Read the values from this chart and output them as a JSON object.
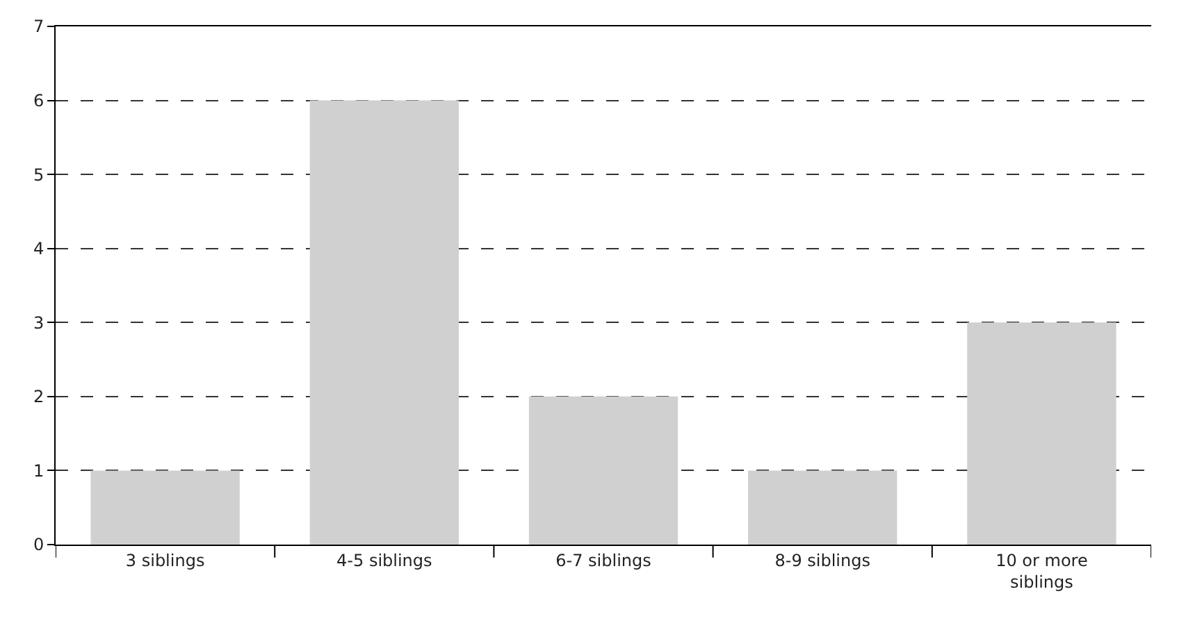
{
  "chart_data": {
    "type": "bar",
    "categories": [
      "3 siblings",
      "4-5 siblings",
      "6-7 siblings",
      "8-9 siblings",
      "10 or more siblings"
    ],
    "values": [
      1,
      6,
      2,
      1,
      3
    ],
    "color": "#d0d0d0",
    "ylim": [
      0,
      7
    ],
    "yticks": [
      0,
      1,
      2,
      3,
      4,
      5,
      6,
      7
    ],
    "grid": "y",
    "line_style": "dashed"
  }
}
